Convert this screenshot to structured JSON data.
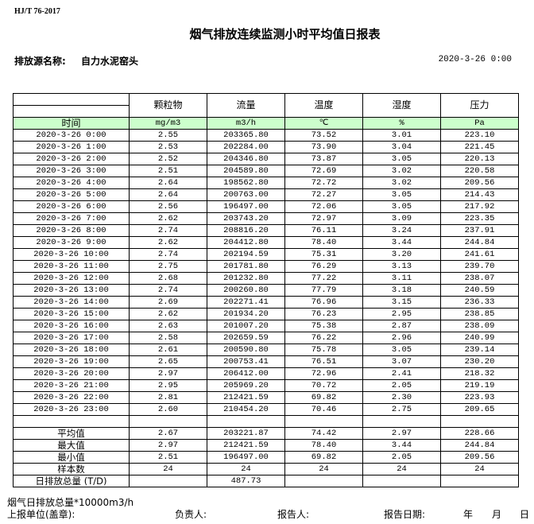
{
  "standard": "HJ/T  76-2017",
  "title": "烟气排放连续监测小时平均值日报表",
  "source_label": "排放源名称:",
  "source_value": "自力水泥窑头",
  "report_datetime": "2020-3-26  0:00",
  "table": {
    "headers": [
      "颗粒物",
      "流量",
      "温度",
      "湿度",
      "压力"
    ],
    "time_label": "时间",
    "units": [
      "mg/m3",
      "m3/h",
      "℃",
      "%",
      "Pa"
    ],
    "rows": [
      [
        "2020-3-26 0:00",
        "2.55",
        "203365.80",
        "73.52",
        "3.01",
        "223.10"
      ],
      [
        "2020-3-26 1:00",
        "2.53",
        "202284.00",
        "73.90",
        "3.04",
        "221.45"
      ],
      [
        "2020-3-26 2:00",
        "2.52",
        "204346.80",
        "73.87",
        "3.05",
        "220.13"
      ],
      [
        "2020-3-26 3:00",
        "2.51",
        "204589.80",
        "72.69",
        "3.02",
        "220.58"
      ],
      [
        "2020-3-26 4:00",
        "2.64",
        "198562.80",
        "72.72",
        "3.02",
        "209.56"
      ],
      [
        "2020-3-26 5:00",
        "2.64",
        "200763.00",
        "72.27",
        "3.05",
        "214.43"
      ],
      [
        "2020-3-26 6:00",
        "2.56",
        "196497.00",
        "72.06",
        "3.05",
        "217.92"
      ],
      [
        "2020-3-26 7:00",
        "2.62",
        "203743.20",
        "72.97",
        "3.09",
        "223.35"
      ],
      [
        "2020-3-26 8:00",
        "2.74",
        "208816.20",
        "76.11",
        "3.24",
        "237.91"
      ],
      [
        "2020-3-26 9:00",
        "2.62",
        "204412.80",
        "78.40",
        "3.44",
        "244.84"
      ],
      [
        "2020-3-26 10:00",
        "2.74",
        "202194.59",
        "75.31",
        "3.20",
        "241.61"
      ],
      [
        "2020-3-26 11:00",
        "2.75",
        "201781.80",
        "76.29",
        "3.13",
        "239.70"
      ],
      [
        "2020-3-26 12:00",
        "2.68",
        "201232.80",
        "77.22",
        "3.11",
        "238.07"
      ],
      [
        "2020-3-26 13:00",
        "2.74",
        "200260.80",
        "77.79",
        "3.18",
        "240.59"
      ],
      [
        "2020-3-26 14:00",
        "2.69",
        "202271.41",
        "76.96",
        "3.15",
        "236.33"
      ],
      [
        "2020-3-26 15:00",
        "2.62",
        "201934.20",
        "76.23",
        "2.95",
        "238.85"
      ],
      [
        "2020-3-26 16:00",
        "2.63",
        "201007.20",
        "75.38",
        "2.87",
        "238.09"
      ],
      [
        "2020-3-26 17:00",
        "2.58",
        "202659.59",
        "76.22",
        "2.96",
        "240.99"
      ],
      [
        "2020-3-26 18:00",
        "2.61",
        "200590.80",
        "75.78",
        "3.05",
        "239.14"
      ],
      [
        "2020-3-26 19:00",
        "2.65",
        "200753.41",
        "76.51",
        "3.07",
        "230.20"
      ],
      [
        "2020-3-26 20:00",
        "2.97",
        "206412.00",
        "72.96",
        "2.41",
        "218.32"
      ],
      [
        "2020-3-26 21:00",
        "2.95",
        "205969.20",
        "70.72",
        "2.05",
        "219.19"
      ],
      [
        "2020-3-26 22:00",
        "2.81",
        "212421.59",
        "69.82",
        "2.30",
        "223.93"
      ],
      [
        "2020-3-26 23:00",
        "2.60",
        "210454.20",
        "70.46",
        "2.75",
        "209.65"
      ]
    ],
    "summary": [
      [
        "平均值",
        "2.67",
        "203221.87",
        "74.42",
        "2.97",
        "228.66"
      ],
      [
        "最大值",
        "2.97",
        "212421.59",
        "78.40",
        "3.44",
        "244.84"
      ],
      [
        "最小值",
        "2.51",
        "196497.00",
        "69.82",
        "2.05",
        "209.56"
      ],
      [
        "样本数",
        "24",
        "24",
        "24",
        "24",
        "24"
      ],
      [
        "日排放总量 (T/D)",
        "",
        "487.73",
        "",
        "",
        ""
      ]
    ]
  },
  "note": "烟气日排放总量*10000m3/h",
  "footer": {
    "unit": "上报单位(盖章):",
    "responsible": "负责人:",
    "reporter": "报告人:",
    "report_date": "报告日期:",
    "year": "年",
    "month": "月",
    "day": "日"
  }
}
